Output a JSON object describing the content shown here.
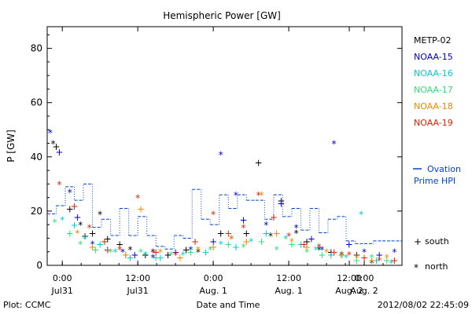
{
  "chart_data": {
    "type": "scatter",
    "title": "Hemispheric Power [GW]",
    "ylabel": "P [GW]",
    "xlabel": "Date and Time",
    "ylim": [
      0,
      88
    ],
    "xlim": [
      -0.1,
      2.25
    ],
    "x_unit": "days since 2012-07-31 00:00 UT",
    "yticks": [
      0,
      20,
      40,
      60,
      80
    ],
    "xticks": [
      {
        "pos": 0,
        "time": "0:00",
        "date": "Jul31"
      },
      {
        "pos": 0.5,
        "time": "12:00",
        "date": "Jul31"
      },
      {
        "pos": 1,
        "time": "0:00",
        "date": "Aug. 1"
      },
      {
        "pos": 1.5,
        "time": "12:00",
        "date": "Aug. 1"
      },
      {
        "pos": 2,
        "time": "0:00",
        "date": "Aug. 2"
      },
      {
        "pos": 2.5,
        "time": "12:00",
        "date": "Aug. 2"
      }
    ],
    "legend_position": "right",
    "footer_left": "Plot: CCMC",
    "footer_right": "2012/08/02 22:45:09",
    "symbol_legend": [
      {
        "symbol": "+",
        "label": "south"
      },
      {
        "symbol": "*",
        "label": "north"
      }
    ],
    "ovation_label_line1": "Ovation",
    "ovation_label_line2": "Prime HPI",
    "series": [
      {
        "name": "METP-02",
        "color": "#000000",
        "points": [
          [
            -0.06,
            45,
            "*"
          ],
          [
            -0.04,
            44,
            "+"
          ],
          [
            0.05,
            21,
            "+"
          ],
          [
            0.12,
            15,
            "*"
          ],
          [
            0.15,
            11,
            "+"
          ],
          [
            0.2,
            12,
            "+"
          ],
          [
            0.25,
            19,
            "*"
          ],
          [
            0.3,
            10,
            "+"
          ],
          [
            0.38,
            8,
            "+"
          ],
          [
            0.45,
            6,
            "*"
          ],
          [
            0.55,
            4,
            "+"
          ],
          [
            0.6,
            5,
            "*"
          ],
          [
            0.7,
            4,
            "+"
          ],
          [
            0.82,
            6,
            "+"
          ],
          [
            0.9,
            5,
            "*"
          ],
          [
            1.05,
            12,
            "+"
          ],
          [
            1.12,
            10,
            "*"
          ],
          [
            1.22,
            12,
            "+"
          ],
          [
            1.3,
            38,
            "+"
          ],
          [
            1.38,
            11,
            "*"
          ],
          [
            1.45,
            24,
            "+"
          ],
          [
            1.55,
            12,
            "*"
          ],
          [
            1.62,
            9,
            "+"
          ],
          [
            1.7,
            6,
            "*"
          ],
          [
            1.78,
            5,
            "+"
          ],
          [
            1.85,
            4,
            "*"
          ],
          [
            1.95,
            4,
            "+"
          ],
          [
            2.05,
            1,
            "*"
          ]
        ]
      },
      {
        "name": "NOAA-15",
        "color": "#0000cc",
        "points": [
          [
            -0.08,
            49,
            "*"
          ],
          [
            -0.02,
            42,
            "+"
          ],
          [
            0.05,
            27,
            "*"
          ],
          [
            0.1,
            18,
            "+"
          ],
          [
            0.2,
            8,
            "*"
          ],
          [
            0.3,
            6,
            "+"
          ],
          [
            0.4,
            5,
            "*"
          ],
          [
            0.48,
            4,
            "+"
          ],
          [
            0.6,
            3,
            "*"
          ],
          [
            0.75,
            5,
            "+"
          ],
          [
            0.85,
            6,
            "*"
          ],
          [
            1.0,
            9,
            "+"
          ],
          [
            1.05,
            41,
            "*"
          ],
          [
            1.15,
            26,
            "*"
          ],
          [
            1.2,
            17,
            "+"
          ],
          [
            1.35,
            15,
            "*"
          ],
          [
            1.45,
            23,
            "+"
          ],
          [
            1.55,
            14,
            "*"
          ],
          [
            1.65,
            10,
            "+"
          ],
          [
            1.72,
            6,
            "*"
          ],
          [
            1.8,
            45,
            "*"
          ],
          [
            1.9,
            8,
            "+"
          ],
          [
            2.0,
            5,
            "*"
          ],
          [
            2.1,
            4,
            "+"
          ],
          [
            2.2,
            5,
            "*"
          ]
        ]
      },
      {
        "name": "NOAA-16",
        "color": "#00cccc",
        "points": [
          [
            0.0,
            17,
            "*"
          ],
          [
            0.08,
            15,
            "+"
          ],
          [
            0.15,
            10,
            "*"
          ],
          [
            0.25,
            8,
            "+"
          ],
          [
            0.35,
            5,
            "*"
          ],
          [
            0.45,
            3,
            "+"
          ],
          [
            0.55,
            4,
            "*"
          ],
          [
            0.65,
            3,
            "+"
          ],
          [
            0.8,
            4,
            "*"
          ],
          [
            0.95,
            5,
            "+"
          ],
          [
            1.05,
            8,
            "*"
          ],
          [
            1.15,
            7,
            "+"
          ],
          [
            1.25,
            9,
            "*"
          ],
          [
            1.35,
            12,
            "+"
          ],
          [
            1.48,
            10,
            "*"
          ],
          [
            1.58,
            8,
            "+"
          ],
          [
            1.68,
            6,
            "*"
          ],
          [
            1.78,
            4,
            "+"
          ],
          [
            1.88,
            3,
            "*"
          ],
          [
            1.98,
            19,
            "*"
          ],
          [
            2.08,
            2,
            "+"
          ],
          [
            2.18,
            1,
            "*"
          ]
        ]
      },
      {
        "name": "NOAA-17",
        "color": "#33dd77",
        "points": [
          [
            -0.05,
            16,
            "*"
          ],
          [
            0.05,
            12,
            "+"
          ],
          [
            0.12,
            8,
            "*"
          ],
          [
            0.22,
            6,
            "+"
          ],
          [
            0.32,
            5,
            "*"
          ],
          [
            0.42,
            4,
            "+"
          ],
          [
            0.52,
            5,
            "*"
          ],
          [
            0.62,
            3,
            "+"
          ],
          [
            0.72,
            4,
            "*"
          ],
          [
            0.85,
            5,
            "+"
          ],
          [
            0.98,
            6,
            "*"
          ],
          [
            1.1,
            8,
            "+"
          ],
          [
            1.2,
            7,
            "*"
          ],
          [
            1.32,
            9,
            "+"
          ],
          [
            1.42,
            6,
            "*"
          ],
          [
            1.52,
            8,
            "+"
          ],
          [
            1.62,
            5,
            "*"
          ],
          [
            1.72,
            4,
            "+"
          ],
          [
            1.85,
            3,
            "*"
          ],
          [
            1.95,
            2,
            "+"
          ],
          [
            2.05,
            3,
            "*"
          ],
          [
            2.15,
            2,
            "+"
          ]
        ]
      },
      {
        "name": "NOAA-18",
        "color": "#ee8800",
        "points": [
          [
            0.1,
            12,
            "*"
          ],
          [
            0.2,
            7,
            "+"
          ],
          [
            0.3,
            5,
            "*"
          ],
          [
            0.42,
            4,
            "+"
          ],
          [
            0.52,
            21,
            "+"
          ],
          [
            0.65,
            5,
            "*"
          ],
          [
            0.78,
            3,
            "+"
          ],
          [
            0.9,
            6,
            "*"
          ],
          [
            1.0,
            7,
            "+"
          ],
          [
            1.12,
            10,
            "*"
          ],
          [
            1.22,
            9,
            "+"
          ],
          [
            1.32,
            26,
            "*"
          ],
          [
            1.42,
            12,
            "+"
          ],
          [
            1.52,
            9,
            "*"
          ],
          [
            1.62,
            7,
            "+"
          ],
          [
            1.75,
            5,
            "*"
          ],
          [
            1.85,
            4,
            "+"
          ],
          [
            1.95,
            3,
            "*"
          ],
          [
            2.05,
            2,
            "+"
          ],
          [
            2.15,
            3,
            "*"
          ]
        ]
      },
      {
        "name": "NOAA-19",
        "color": "#dd2200",
        "points": [
          [
            -0.02,
            30,
            "*"
          ],
          [
            0.08,
            22,
            "+"
          ],
          [
            0.18,
            14,
            "*"
          ],
          [
            0.28,
            9,
            "+"
          ],
          [
            0.38,
            6,
            "*"
          ],
          [
            0.5,
            25,
            "*"
          ],
          [
            0.62,
            5,
            "+"
          ],
          [
            0.75,
            4,
            "*"
          ],
          [
            0.88,
            9,
            "+"
          ],
          [
            1.0,
            19,
            "*"
          ],
          [
            1.1,
            12,
            "+"
          ],
          [
            1.2,
            14,
            "*"
          ],
          [
            1.3,
            26,
            "*"
          ],
          [
            1.4,
            18,
            "+"
          ],
          [
            1.5,
            11,
            "*"
          ],
          [
            1.6,
            8,
            "+"
          ],
          [
            1.7,
            7,
            "*"
          ],
          [
            1.8,
            5,
            "+"
          ],
          [
            1.9,
            4,
            "*"
          ],
          [
            2.0,
            3,
            "+"
          ],
          [
            2.1,
            2,
            "*"
          ],
          [
            2.2,
            2,
            "+"
          ]
        ]
      }
    ],
    "ovation": {
      "name": "Ovation Prime HPI",
      "color": "#0044cc",
      "points": [
        [
          -0.1,
          19
        ],
        [
          -0.04,
          22
        ],
        [
          0.02,
          29
        ],
        [
          0.08,
          24
        ],
        [
          0.14,
          30
        ],
        [
          0.2,
          14
        ],
        [
          0.26,
          17
        ],
        [
          0.32,
          11
        ],
        [
          0.38,
          21
        ],
        [
          0.44,
          11
        ],
        [
          0.5,
          18
        ],
        [
          0.56,
          11
        ],
        [
          0.62,
          7
        ],
        [
          0.68,
          6
        ],
        [
          0.74,
          11
        ],
        [
          0.8,
          10
        ],
        [
          0.86,
          28
        ],
        [
          0.92,
          17
        ],
        [
          0.98,
          15
        ],
        [
          1.04,
          26
        ],
        [
          1.1,
          21
        ],
        [
          1.16,
          26
        ],
        [
          1.22,
          24
        ],
        [
          1.28,
          24
        ],
        [
          1.34,
          17
        ],
        [
          1.4,
          26
        ],
        [
          1.46,
          18
        ],
        [
          1.52,
          21
        ],
        [
          1.58,
          13
        ],
        [
          1.64,
          21
        ],
        [
          1.7,
          12
        ],
        [
          1.76,
          17
        ],
        [
          1.82,
          18
        ],
        [
          1.88,
          9
        ],
        [
          1.94,
          8
        ],
        [
          2.0,
          8
        ],
        [
          2.06,
          9
        ],
        [
          2.12,
          9
        ],
        [
          2.18,
          9
        ],
        [
          2.24,
          9
        ]
      ]
    }
  }
}
